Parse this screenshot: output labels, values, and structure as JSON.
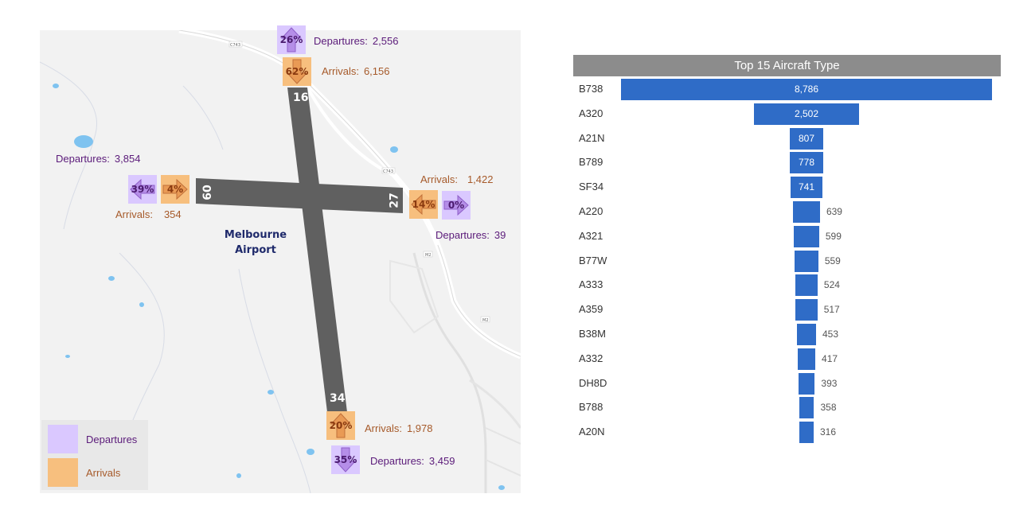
{
  "map": {
    "airport_name_line1": "Melbourne",
    "airport_name_line2": "Airport",
    "runway_numbers": {
      "r16": "16",
      "r34": "34",
      "r09": "09",
      "r27": "27"
    },
    "road_labels": {
      "c743a": "C743",
      "c743b": "C743",
      "m2": "M2",
      "m2b": "M2"
    },
    "ends": {
      "n": {
        "dep_pct": "26%",
        "dep_label": "Departures:",
        "dep_value": "2,556",
        "arr_pct": "62%",
        "arr_label": "Arrivals:",
        "arr_value": "6,156"
      },
      "w": {
        "dep_pct": "39%",
        "dep_label": "Departures:",
        "dep_value": "3,854",
        "arr_pct": "4%",
        "arr_label": "Arrivals:",
        "arr_value": "354"
      },
      "e": {
        "dep_pct": "0%",
        "dep_label": "Departures:",
        "dep_value": "39",
        "arr_pct": "14%",
        "arr_label": "Arrivals:",
        "arr_value": "1,422"
      },
      "s": {
        "dep_pct": "35%",
        "dep_label": "Departures:",
        "dep_value": "3,459",
        "arr_pct": "20%",
        "arr_label": "Arrivals:",
        "arr_value": "1,978"
      }
    },
    "legend": {
      "departures": "Departures",
      "arrivals": "Arrivals"
    },
    "colors": {
      "departures": "#dac8ff",
      "arrivals": "#f7bf7e",
      "runway": "#606060"
    }
  },
  "chart_data": {
    "type": "bar",
    "orientation": "horizontal-centered",
    "title": "Top 15 Aircraft Type",
    "categories": [
      "B738",
      "A320",
      "A21N",
      "B789",
      "SF34",
      "A220",
      "A321",
      "B77W",
      "A333",
      "A359",
      "B38M",
      "A332",
      "DH8D",
      "B788",
      "A20N"
    ],
    "values": [
      8786,
      2502,
      807,
      778,
      741,
      639,
      599,
      559,
      524,
      517,
      453,
      417,
      393,
      358,
      316
    ],
    "value_labels": [
      "8,786",
      "2,502",
      "807",
      "778",
      "741",
      "639",
      "599",
      "559",
      "524",
      "517",
      "453",
      "417",
      "393",
      "358",
      "316"
    ],
    "bar_color": "#2f6cc7"
  }
}
